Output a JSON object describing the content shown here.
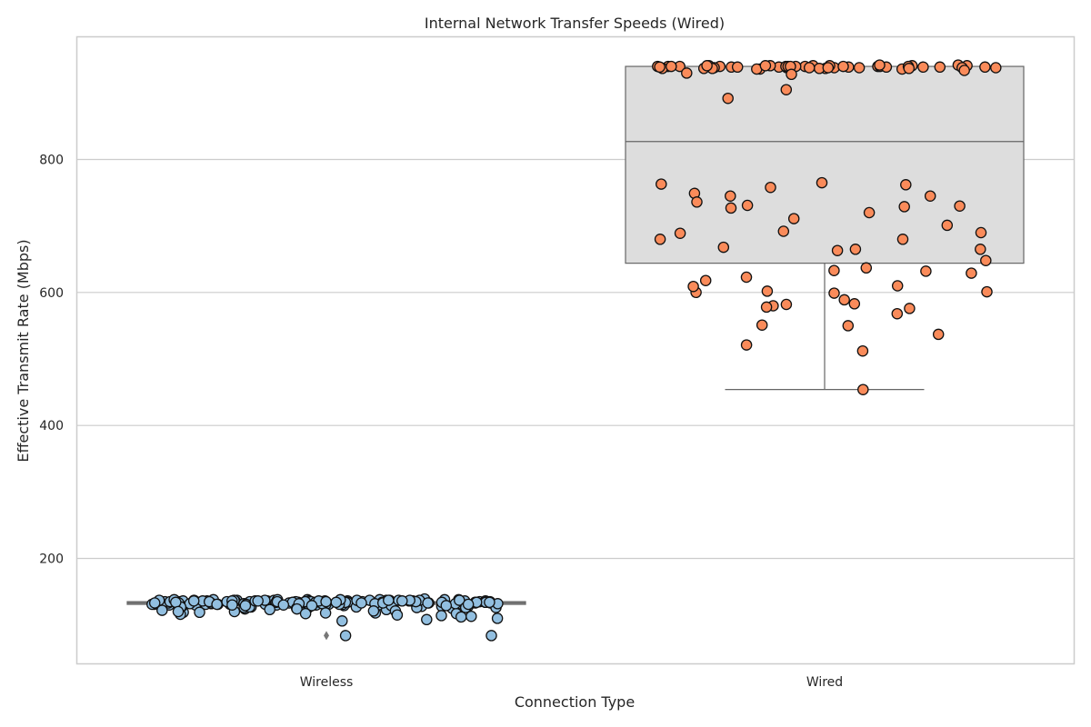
{
  "chart_data": {
    "type": "box",
    "title": "Internal Network Transfer Speeds (Wired)",
    "xlabel": "Connection Type",
    "ylabel": "Effective Transmit Rate (Mbps)",
    "ylim": [
      40,
      985
    ],
    "yticks": [
      200,
      400,
      600,
      800
    ],
    "grid": true,
    "categories": [
      "Wireless",
      "Wired"
    ],
    "boxes": [
      {
        "category": "Wireless",
        "whisker_low": 131,
        "q1": 131,
        "median": 133,
        "q3": 135,
        "whisker_high": 135,
        "outliers": [
          84
        ],
        "box_color": "#a9a9a9",
        "point_color": "#92bfe0"
      },
      {
        "category": "Wired",
        "whisker_low": 454,
        "q1": 644,
        "median": 827,
        "q3": 940,
        "whisker_high": 940,
        "outliers": [],
        "box_color": "#dddddd",
        "point_color": "#fa8b5a"
      }
    ],
    "points": [
      {
        "category": "Wireless",
        "values": [
          134,
          136,
          133,
          137,
          135,
          131,
          129,
          138,
          136,
          134,
          127,
          139,
          133,
          135,
          131,
          137,
          123,
          136,
          134,
          132,
          138,
          130,
          135,
          133,
          137,
          124,
          136,
          131,
          134,
          129,
          137,
          135,
          132,
          126,
          138,
          134,
          131,
          136,
          133,
          128,
          135,
          137,
          121,
          134,
          136,
          132,
          130,
          137,
          135,
          133,
          126,
          138,
          134,
          131,
          136,
          119,
          133,
          135,
          137,
          129,
          134,
          131,
          122,
          136,
          133,
          138,
          127,
          135,
          132,
          120,
          136,
          134,
          131,
          137,
          128,
          135,
          133,
          125,
          136,
          118,
          134,
          132,
          137,
          130,
          135,
          133,
          129,
          136,
          124,
          134,
          131,
          138,
          127,
          133,
          136,
          132,
          135,
          117,
          137,
          134,
          130,
          133,
          136,
          126,
          135,
          131,
          137,
          121,
          134,
          132,
          136,
          128,
          133,
          135,
          116,
          137,
          131,
          134,
          129,
          136,
          133,
          135,
          127,
          132,
          138,
          134,
          130,
          136,
          133,
          119,
          135,
          131,
          137,
          128,
          134,
          132,
          136,
          125,
          133,
          135,
          130,
          137,
          123,
          134,
          136,
          132,
          129,
          135,
          133,
          137,
          127,
          134,
          131,
          136,
          122,
          133,
          135,
          130,
          138,
          128,
          134,
          132,
          136,
          126,
          133,
          135,
          131,
          137,
          129,
          134,
          112,
          124,
          118,
          115,
          108,
          113,
          106,
          110,
          121,
          114,
          117,
          120,
          84,
          84
        ]
      },
      {
        "category": "Wired",
        "values": [
          940,
          938,
          941,
          939,
          937,
          940,
          942,
          936,
          940,
          939,
          941,
          938,
          940,
          937,
          939,
          941,
          940,
          938,
          936,
          940,
          939,
          941,
          937,
          940,
          938,
          942,
          939,
          940,
          936,
          941,
          938,
          940,
          939,
          937,
          941,
          940,
          938,
          939,
          940,
          941,
          937,
          939,
          940,
          938,
          941,
          939,
          940,
          937,
          938,
          940,
          934,
          930,
          928,
          892,
          905,
          763,
          749,
          729,
          701,
          680,
          663,
          731,
          758,
          727,
          762,
          765,
          745,
          720,
          730,
          690,
          692,
          665,
          745,
          711,
          689,
          668,
          736,
          680,
          665,
          601,
          623,
          580,
          551,
          618,
          629,
          637,
          632,
          568,
          521,
          583,
          600,
          610,
          648,
          512,
          578,
          602,
          589,
          550,
          609,
          582,
          537,
          576,
          599,
          633,
          454
        ]
      }
    ]
  }
}
